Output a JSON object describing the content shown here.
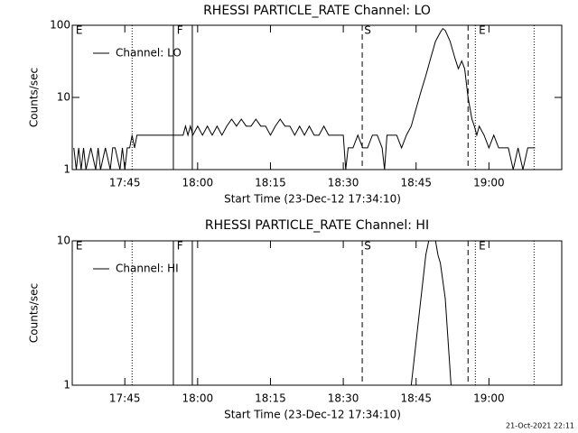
{
  "chart_data": [
    {
      "type": "line",
      "title": "RHESSI PARTICLE_RATE Channel: LO",
      "ylabel": "Counts/sec",
      "xlabel": "Start Time (23-Dec-12 17:34:10)",
      "log_y": true,
      "ylim": [
        1,
        100
      ],
      "yticks": [
        1,
        10,
        100
      ],
      "xlim": [
        1054.17,
        1155
      ],
      "xticks": [
        {
          "value": 1065,
          "label": "17:45"
        },
        {
          "value": 1080,
          "label": "18:00"
        },
        {
          "value": 1095,
          "label": "18:15"
        },
        {
          "value": 1110,
          "label": "18:30"
        },
        {
          "value": 1125,
          "label": "18:45"
        },
        {
          "value": 1140,
          "label": "19:00"
        }
      ],
      "vlines": [
        {
          "x": 1066.5,
          "style": "dotted"
        },
        {
          "x": 1075,
          "style": "solid"
        },
        {
          "x": 1078.9,
          "style": "solid"
        },
        {
          "x": 1113.9,
          "style": "dashed"
        },
        {
          "x": 1135.7,
          "style": "dashed"
        },
        {
          "x": 1137.2,
          "style": "dotted"
        },
        {
          "x": 1149.3,
          "style": "dotted"
        }
      ],
      "flags": [
        {
          "label": "E",
          "x": 1054.9
        },
        {
          "label": "F",
          "x": 1075.7
        },
        {
          "label": "S",
          "x": 1114.3
        },
        {
          "label": "E",
          "x": 1137.9
        }
      ],
      "legend": "upper left",
      "series": [
        {
          "name": "Channel: LO",
          "color": "#000000",
          "x": [
            1054.5,
            1055,
            1055.5,
            1056,
            1056.5,
            1057,
            1058,
            1059,
            1059.5,
            1060,
            1061,
            1062,
            1062.5,
            1063,
            1064,
            1064.5,
            1065,
            1065.5,
            1066,
            1066.5,
            1067,
            1067.5,
            1070,
            1075,
            1077,
            1077.5,
            1078,
            1078.5,
            1079,
            1080,
            1081,
            1082,
            1083,
            1084,
            1085,
            1086,
            1087,
            1088,
            1089,
            1090,
            1091,
            1092,
            1093,
            1094,
            1095,
            1096,
            1097,
            1098,
            1099,
            1100,
            1101,
            1102,
            1103,
            1104,
            1105,
            1106,
            1107,
            1108,
            1110,
            1110.5,
            1111,
            1112,
            1113,
            1114,
            1115,
            1116,
            1117,
            1118,
            1118.5,
            1119,
            1121,
            1122,
            1123,
            1124,
            1125,
            1126,
            1127,
            1128,
            1129,
            1130,
            1130.5,
            1131,
            1132,
            1133,
            1133.7,
            1134.4,
            1135,
            1135.7,
            1136.5,
            1137,
            1137.5,
            1138,
            1139,
            1140,
            1141,
            1142,
            1144,
            1145,
            1146,
            1147,
            1148,
            1149.5
          ],
          "values": [
            2,
            1,
            2,
            1,
            2,
            1,
            2,
            1,
            2,
            1,
            2,
            1,
            2,
            2,
            1,
            2,
            1,
            2,
            2,
            3,
            2,
            3,
            3,
            3,
            3,
            4,
            3,
            4,
            3,
            4,
            3,
            4,
            3,
            4,
            3,
            4,
            5,
            4,
            5,
            4,
            4,
            5,
            4,
            4,
            3,
            4,
            5,
            4,
            4,
            3,
            4,
            3,
            4,
            3,
            3,
            4,
            3,
            3,
            3,
            1,
            2,
            2,
            3,
            2,
            2,
            3,
            3,
            2,
            1,
            3,
            3,
            2,
            3,
            4,
            7,
            12,
            20,
            35,
            60,
            80,
            90,
            85,
            60,
            35,
            25,
            32,
            25,
            10,
            5,
            4,
            3,
            4,
            3,
            2,
            3,
            2,
            2,
            1,
            2,
            1,
            2,
            2
          ]
        }
      ]
    },
    {
      "type": "line",
      "title": "RHESSI PARTICLE_RATE Channel: HI",
      "ylabel": "Counts/sec",
      "xlabel": "Start Time (23-Dec-12 17:34:10)",
      "log_y": true,
      "ylim": [
        1,
        10
      ],
      "yticks": [
        1,
        10
      ],
      "xlim": [
        1054.17,
        1155
      ],
      "xticks": [
        {
          "value": 1065,
          "label": "17:45"
        },
        {
          "value": 1080,
          "label": "18:00"
        },
        {
          "value": 1095,
          "label": "18:15"
        },
        {
          "value": 1110,
          "label": "18:30"
        },
        {
          "value": 1125,
          "label": "18:45"
        },
        {
          "value": 1140,
          "label": "19:00"
        }
      ],
      "vlines": [
        {
          "x": 1066.5,
          "style": "dotted"
        },
        {
          "x": 1075,
          "style": "solid"
        },
        {
          "x": 1078.9,
          "style": "solid"
        },
        {
          "x": 1113.9,
          "style": "dashed"
        },
        {
          "x": 1135.7,
          "style": "dashed"
        },
        {
          "x": 1137.2,
          "style": "dotted"
        },
        {
          "x": 1149.3,
          "style": "dotted"
        }
      ],
      "flags": [
        {
          "label": "E",
          "x": 1054.9
        },
        {
          "label": "F",
          "x": 1075.7
        },
        {
          "label": "S",
          "x": 1114.3
        },
        {
          "label": "E",
          "x": 1137.9
        }
      ],
      "legend": "upper left",
      "series": [
        {
          "name": "Channel: HI",
          "color": "#000000",
          "x": [
            1124,
            1125,
            1126,
            1127,
            1127.6,
            1129,
            1129.5,
            1130,
            1131,
            1132.2
          ],
          "values": [
            1,
            2,
            4,
            8,
            10,
            10,
            8,
            7,
            4,
            1
          ]
        }
      ]
    }
  ],
  "footer": "21-Oct-2021 22:11"
}
